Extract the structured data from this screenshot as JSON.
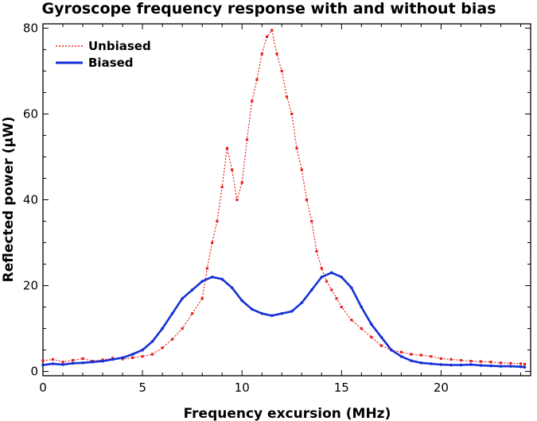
{
  "chart_data": {
    "type": "line",
    "title": "Gyroscope frequency response with and without bias",
    "xlabel": "Frequency excursion (MHz)",
    "ylabel": "Reflected power (µW)",
    "xlim": [
      0,
      24.5
    ],
    "ylim": [
      -1,
      81
    ],
    "x_ticks": [
      0,
      5,
      10,
      15,
      20
    ],
    "y_ticks": [
      0,
      20,
      40,
      60,
      80
    ],
    "x_tick_labels": [
      "0",
      "5",
      "10",
      "15",
      "20"
    ],
    "y_tick_labels": [
      "0",
      "20",
      "40",
      "60",
      "80"
    ],
    "legend_position": "top-left",
    "series": [
      {
        "name": "Unbiased",
        "color": "#e8201a",
        "style": "dotted",
        "x": [
          0.0,
          0.5,
          1.0,
          1.5,
          2.0,
          2.5,
          3.0,
          3.5,
          4.0,
          4.5,
          5.0,
          5.5,
          6.0,
          6.5,
          7.0,
          7.5,
          8.0,
          8.25,
          8.5,
          8.75,
          9.0,
          9.25,
          9.5,
          9.75,
          10.0,
          10.25,
          10.5,
          10.75,
          11.0,
          11.25,
          11.5,
          11.75,
          12.0,
          12.25,
          12.5,
          12.75,
          13.0,
          13.25,
          13.5,
          13.75,
          14.0,
          14.25,
          14.5,
          14.75,
          15.0,
          15.5,
          16.0,
          16.5,
          17.0,
          17.5,
          18.0,
          18.5,
          19.0,
          19.5,
          20.0,
          20.5,
          21.0,
          21.5,
          22.0,
          22.5,
          23.0,
          23.5,
          24.0,
          24.2
        ],
        "y": [
          2.5,
          2.8,
          2.2,
          2.6,
          3.0,
          2.4,
          2.7,
          3.1,
          2.9,
          3.2,
          3.5,
          4.0,
          5.5,
          7.5,
          10.0,
          13.5,
          17.0,
          24.0,
          30.0,
          35.0,
          43.0,
          52.0,
          47.0,
          40.0,
          44.0,
          54.0,
          63.0,
          68.0,
          74.0,
          78.0,
          79.5,
          74.0,
          70.0,
          64.0,
          60.0,
          52.0,
          47.0,
          40.0,
          35.0,
          28.0,
          24.0,
          21.0,
          19.0,
          17.0,
          15.0,
          12.0,
          10.0,
          8.0,
          6.0,
          5.0,
          4.5,
          4.0,
          3.8,
          3.5,
          3.0,
          2.8,
          2.6,
          2.4,
          2.3,
          2.2,
          2.0,
          1.9,
          1.8,
          1.7
        ]
      },
      {
        "name": "Biased",
        "color": "#1530d4",
        "style": "solid",
        "x": [
          0.0,
          0.5,
          1.0,
          1.5,
          2.0,
          2.5,
          3.0,
          3.5,
          4.0,
          4.5,
          5.0,
          5.5,
          6.0,
          6.5,
          7.0,
          7.5,
          8.0,
          8.5,
          9.0,
          9.5,
          10.0,
          10.5,
          11.0,
          11.5,
          12.0,
          12.5,
          13.0,
          13.5,
          14.0,
          14.5,
          15.0,
          15.5,
          16.0,
          16.5,
          17.0,
          17.5,
          18.0,
          18.5,
          19.0,
          19.5,
          20.0,
          20.5,
          21.0,
          21.5,
          22.0,
          22.5,
          23.0,
          23.5,
          24.0,
          24.2
        ],
        "y": [
          1.5,
          1.8,
          1.6,
          1.9,
          2.0,
          2.2,
          2.4,
          2.8,
          3.2,
          4.0,
          5.0,
          7.0,
          10.0,
          13.5,
          17.0,
          19.0,
          21.0,
          22.0,
          21.5,
          19.5,
          16.5,
          14.5,
          13.5,
          13.0,
          13.5,
          14.0,
          16.0,
          19.0,
          22.0,
          23.0,
          22.0,
          19.5,
          15.0,
          11.0,
          8.0,
          5.0,
          3.5,
          2.5,
          2.0,
          1.8,
          1.6,
          1.5,
          1.5,
          1.6,
          1.4,
          1.3,
          1.2,
          1.2,
          1.1,
          1.0
        ]
      }
    ]
  }
}
